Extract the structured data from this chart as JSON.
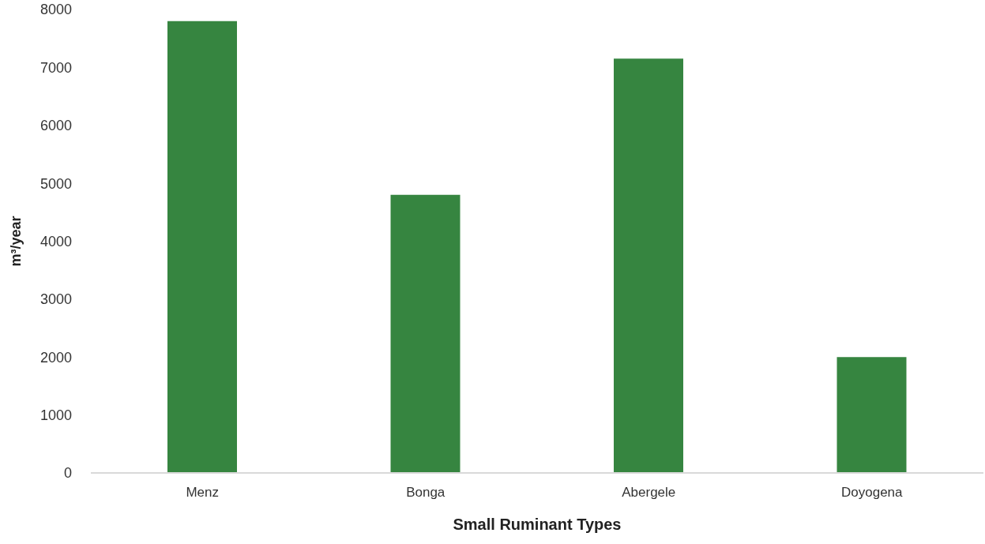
{
  "chart_data": {
    "type": "bar",
    "xlabel": "Small Ruminant Types",
    "ylabel": "m³/year",
    "categories": [
      "Menz",
      "Bonga",
      "Abergele",
      "Doyogena"
    ],
    "values": [
      7800,
      4800,
      7150,
      2000
    ],
    "color": "#368540",
    "ylim": [
      0,
      8000
    ],
    "yticks": [
      0,
      1000,
      2000,
      3000,
      4000,
      5000,
      6000,
      7000,
      8000
    ],
    "grid": false
  }
}
